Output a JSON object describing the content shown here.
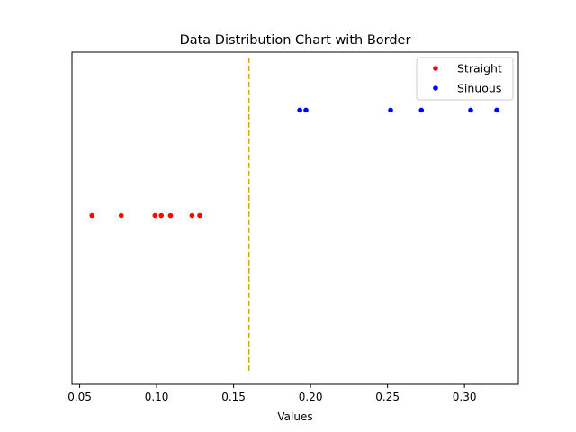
{
  "chart_data": {
    "type": "scatter",
    "title": "Data Distribution Chart with Border",
    "xlabel": "Values",
    "ylabel": "",
    "xlim": [
      0.045,
      0.335
    ],
    "ylim": [
      -0.6,
      2.55
    ],
    "grid": false,
    "x_ticks": [
      0.05,
      0.1,
      0.15,
      0.2,
      0.25,
      0.3
    ],
    "x_tick_labels": [
      "0.05",
      "0.10",
      "0.15",
      "0.20",
      "0.25",
      "0.30"
    ],
    "y_ticks_visible": false,
    "legend_position": "upper right",
    "series": [
      {
        "name": "Straight",
        "color": "#ff0000",
        "marker": "circle",
        "points": [
          {
            "x": 0.058,
            "y": 1
          },
          {
            "x": 0.077,
            "y": 1
          },
          {
            "x": 0.099,
            "y": 1
          },
          {
            "x": 0.103,
            "y": 1
          },
          {
            "x": 0.109,
            "y": 1
          },
          {
            "x": 0.123,
            "y": 1
          },
          {
            "x": 0.128,
            "y": 1
          }
        ]
      },
      {
        "name": "Sinuous",
        "color": "#0000ff",
        "marker": "circle",
        "points": [
          {
            "x": 0.193,
            "y": 2
          },
          {
            "x": 0.197,
            "y": 2
          },
          {
            "x": 0.252,
            "y": 2
          },
          {
            "x": 0.272,
            "y": 2
          },
          {
            "x": 0.304,
            "y": 2
          },
          {
            "x": 0.321,
            "y": 2
          }
        ]
      }
    ],
    "reference_line": {
      "orientation": "vertical",
      "x": 0.16,
      "y_range": [
        -0.5,
        2.5
      ],
      "color": "#ccaa00",
      "style": "dashed"
    }
  }
}
